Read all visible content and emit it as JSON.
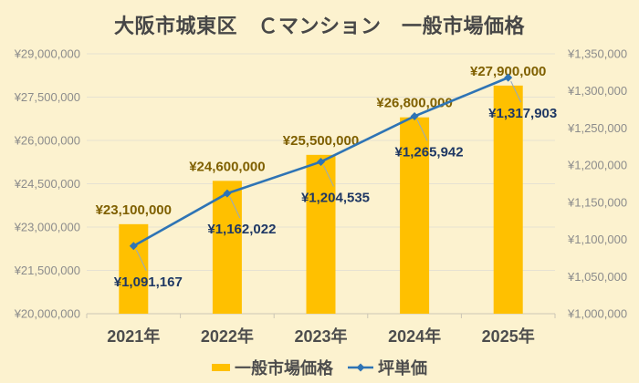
{
  "title": "大阪市城東区　Ｃマンション　一般市場価格",
  "legend": {
    "items": [
      {
        "label": "一般市場価格",
        "type": "bar"
      },
      {
        "label": "坪単価",
        "type": "line"
      }
    ]
  },
  "colors": {
    "background": "#FCF2CF",
    "title_text": "#474747",
    "bar": "#FFC000",
    "bar_label": "#7F6000",
    "line": "#2E74B5",
    "line_label": "#1F3864",
    "leader_line": "#93A9C6",
    "axis_text": "#8C8C8C",
    "category_text": "#4D4D4D",
    "gridline": "#E6E1D2",
    "axis_line": "#CCC6B5"
  },
  "chart_data": {
    "type": "combo_bar_line",
    "title": "大阪市城東区　Ｃマンション　一般市場価格",
    "categories": [
      "2021年",
      "2022年",
      "2023年",
      "2024年",
      "2025年"
    ],
    "series": [
      {
        "name": "一般市場価格",
        "type": "bar",
        "axis": "left",
        "values": [
          23100000,
          24600000,
          25500000,
          26800000,
          27900000
        ],
        "data_labels": [
          "¥23,100,000",
          "¥24,600,000",
          "¥25,500,000",
          "¥26,800,000",
          "¥27,900,000"
        ]
      },
      {
        "name": "坪単価",
        "type": "line",
        "axis": "right",
        "values": [
          1091167,
          1162022,
          1204535,
          1265942,
          1317903
        ],
        "data_labels": [
          "¥1,091,167",
          "¥1,162,022",
          "¥1,204,535",
          "¥1,265,942",
          "¥1,317,903"
        ]
      }
    ],
    "left_axis": {
      "min": 20000000,
      "max": 29000000,
      "step": 1500000,
      "tick_labels": [
        "¥29,000,000",
        "¥27,500,000",
        "¥26,000,000",
        "¥24,500,000",
        "¥23,000,000",
        "¥21,500,000",
        "¥20,000,000"
      ]
    },
    "right_axis": {
      "min": 1000000,
      "max": 1350000,
      "step": 50000,
      "tick_labels": [
        "¥1,350,000",
        "¥1,300,000",
        "¥1,250,000",
        "¥1,200,000",
        "¥1,150,000",
        "¥1,100,000",
        "¥1,050,000",
        "¥1,000,000"
      ]
    },
    "grid": true,
    "legend_position": "bottom"
  }
}
